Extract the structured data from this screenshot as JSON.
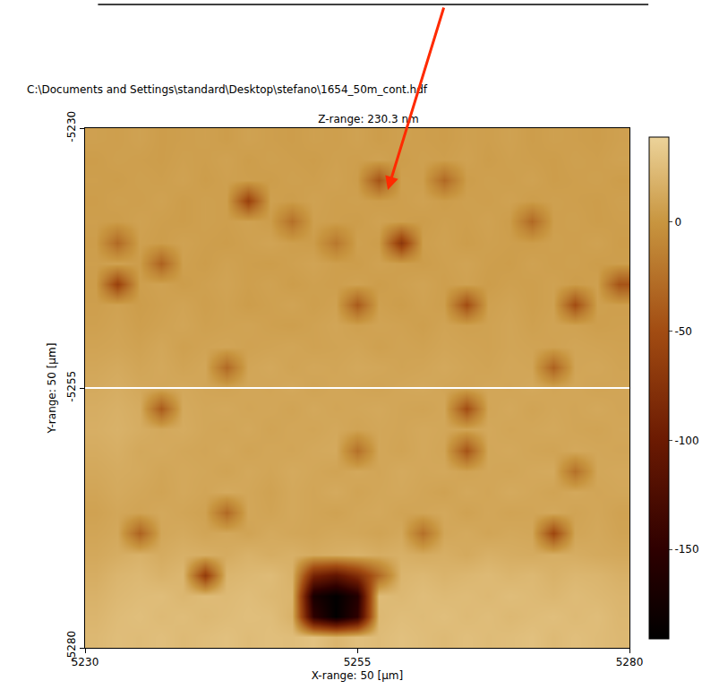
{
  "chart_data": {
    "type": "heatmap",
    "title": "Z-range: 230.3 nm",
    "subtitle": "C:\\Documents and Settings\\standard\\Desktop\\stefano\\1654_50m_cont.hdf",
    "x_label": "X-range: 50 [µm]",
    "y_label": "Y-range: 50 [µm]",
    "xlim": [
      5230,
      5280
    ],
    "ylim": [
      -5280,
      -5230
    ],
    "xticks": [
      5230,
      5255,
      5280
    ],
    "yticks": [
      -5230,
      -5255,
      -5280
    ],
    "profile_line_y": -5255,
    "colorbar": {
      "range": [
        -191,
        39
      ],
      "ticks": [
        0,
        -50,
        -100,
        -150
      ]
    },
    "x": [
      5231,
      5233,
      5235,
      5237,
      5239,
      5241,
      5243,
      5245,
      5247,
      5249,
      5251,
      5253,
      5255,
      5257,
      5259,
      5261,
      5263,
      5265,
      5267,
      5269,
      5271,
      5273,
      5275,
      5277,
      5279
    ],
    "y": [
      -5279,
      -5277,
      -5275,
      -5273,
      -5271,
      -5269,
      -5267,
      -5265,
      -5263,
      -5261,
      -5259,
      -5257,
      -5255,
      -5253,
      -5251,
      -5249,
      -5247,
      -5245,
      -5243,
      -5241,
      -5239,
      -5237,
      -5235,
      -5233,
      -5231
    ],
    "z": [
      [
        22,
        25,
        24,
        26,
        23,
        25,
        27,
        24,
        26,
        25,
        28,
        20,
        26,
        24,
        27,
        25,
        23,
        26,
        24,
        25,
        27,
        23,
        26,
        24,
        22
      ],
      [
        20,
        24,
        26,
        23,
        25,
        22,
        24,
        26,
        25,
        18,
        -150,
        -190,
        -150,
        22,
        25,
        24,
        26,
        23,
        25,
        22,
        24,
        26,
        23,
        25,
        21
      ],
      [
        18,
        22,
        24,
        25,
        21,
        24,
        23,
        25,
        22,
        20,
        -170,
        -190,
        -160,
        24,
        22,
        25,
        23,
        24,
        22,
        25,
        23,
        21,
        24,
        22,
        20
      ],
      [
        15,
        20,
        22,
        18,
        21,
        -65,
        20,
        22,
        24,
        18,
        -90,
        -110,
        -80,
        -30,
        20,
        22,
        19,
        21,
        23,
        20,
        22,
        18,
        21,
        20,
        17
      ],
      [
        12,
        15,
        18,
        14,
        17,
        16,
        14,
        18,
        15,
        17,
        14,
        16,
        18,
        15,
        17,
        14,
        16,
        13,
        17,
        15,
        14,
        16,
        15,
        13,
        12
      ],
      [
        10,
        12,
        -35,
        11,
        13,
        10,
        12,
        9,
        13,
        11,
        10,
        12,
        11,
        9,
        12,
        -25,
        11,
        13,
        10,
        12,
        11,
        -55,
        10,
        12,
        9
      ],
      [
        8,
        11,
        9,
        12,
        10,
        8,
        -30,
        11,
        9,
        12,
        10,
        8,
        11,
        12,
        9,
        10,
        12,
        8,
        11,
        9,
        10,
        12,
        9,
        11,
        8
      ],
      [
        10,
        13,
        11,
        9,
        12,
        10,
        13,
        11,
        8,
        12,
        10,
        13,
        9,
        11,
        12,
        10,
        8,
        12,
        10,
        13,
        11,
        9,
        12,
        10,
        11
      ],
      [
        12,
        14,
        13,
        10,
        12,
        11,
        9,
        12,
        10,
        13,
        11,
        9,
        12,
        10,
        13,
        11,
        12,
        9,
        11,
        10,
        12,
        13,
        -25,
        11,
        12
      ],
      [
        14,
        16,
        12,
        13,
        11,
        10,
        12,
        9,
        11,
        10,
        12,
        13,
        -25,
        11,
        9,
        12,
        10,
        -45,
        11,
        12,
        10,
        9,
        12,
        11,
        10
      ],
      [
        16,
        18,
        15,
        12,
        14,
        11,
        10,
        12,
        9,
        11,
        10,
        12,
        9,
        11,
        10,
        12,
        11,
        9,
        12,
        10,
        11,
        12,
        10,
        9,
        11
      ],
      [
        15,
        17,
        14,
        -40,
        13,
        11,
        12,
        10,
        11,
        9,
        12,
        10,
        11,
        12,
        10,
        9,
        11,
        -50,
        10,
        12,
        9,
        11,
        10,
        12,
        10
      ],
      [
        13,
        15,
        12,
        11,
        12,
        10,
        9,
        11,
        10,
        12,
        9,
        11,
        10,
        9,
        11,
        12,
        10,
        9,
        11,
        10,
        12,
        10,
        11,
        9,
        10
      ],
      [
        11,
        13,
        10,
        12,
        9,
        11,
        -30,
        10,
        12,
        9,
        11,
        10,
        12,
        11,
        9,
        10,
        12,
        10,
        9,
        11,
        10,
        -35,
        10,
        11,
        9
      ],
      [
        9,
        10,
        8,
        11,
        7,
        9,
        10,
        8,
        9,
        10,
        8,
        9,
        10,
        7,
        9,
        8,
        10,
        9,
        8,
        10,
        9,
        8,
        10,
        9,
        8
      ],
      [
        7,
        9,
        6,
        8,
        10,
        7,
        8,
        9,
        7,
        6,
        8,
        10,
        7,
        9,
        8,
        6,
        9,
        7,
        8,
        10,
        7,
        9,
        8,
        6,
        7
      ],
      [
        6,
        8,
        5,
        7,
        9,
        6,
        8,
        5,
        7,
        9,
        6,
        8,
        -40,
        7,
        5,
        8,
        6,
        -50,
        7,
        9,
        6,
        8,
        -50,
        7,
        6
      ],
      [
        5,
        -60,
        6,
        8,
        5,
        7,
        9,
        6,
        8,
        5,
        7,
        6,
        8,
        5,
        7,
        9,
        6,
        8,
        5,
        7,
        6,
        8,
        5,
        7,
        -45
      ],
      [
        6,
        8,
        5,
        -35,
        7,
        5,
        8,
        6,
        5,
        7,
        9,
        6,
        5,
        8,
        6,
        5,
        7,
        9,
        6,
        5,
        8,
        6,
        7,
        5,
        6
      ],
      [
        5,
        -30,
        7,
        5,
        8,
        6,
        5,
        7,
        9,
        6,
        5,
        -20,
        7,
        5,
        -70,
        6,
        8,
        5,
        7,
        6,
        5,
        7,
        6,
        8,
        5
      ],
      [
        6,
        5,
        8,
        6,
        5,
        7,
        6,
        8,
        5,
        -25,
        7,
        6,
        5,
        8,
        6,
        5,
        7,
        6,
        8,
        5,
        -30,
        6,
        7,
        5,
        6
      ],
      [
        5,
        7,
        6,
        8,
        5,
        7,
        6,
        -60,
        7,
        5,
        8,
        6,
        7,
        5,
        6,
        8,
        5,
        7,
        6,
        8,
        5,
        7,
        6,
        5,
        7
      ],
      [
        6,
        5,
        7,
        6,
        8,
        5,
        7,
        6,
        5,
        7,
        6,
        8,
        5,
        -45,
        7,
        6,
        -30,
        5,
        7,
        6,
        8,
        5,
        6,
        7,
        5
      ],
      [
        5,
        7,
        6,
        5,
        7,
        6,
        8,
        5,
        7,
        6,
        5,
        7,
        6,
        8,
        5,
        7,
        6,
        8,
        5,
        7,
        6,
        5,
        7,
        6,
        8
      ],
      [
        7,
        6,
        8,
        5,
        6,
        7,
        5,
        8,
        6,
        5,
        7,
        6,
        8,
        5,
        7,
        6,
        5,
        7,
        6,
        8,
        5,
        7,
        6,
        5,
        7
      ]
    ]
  }
}
